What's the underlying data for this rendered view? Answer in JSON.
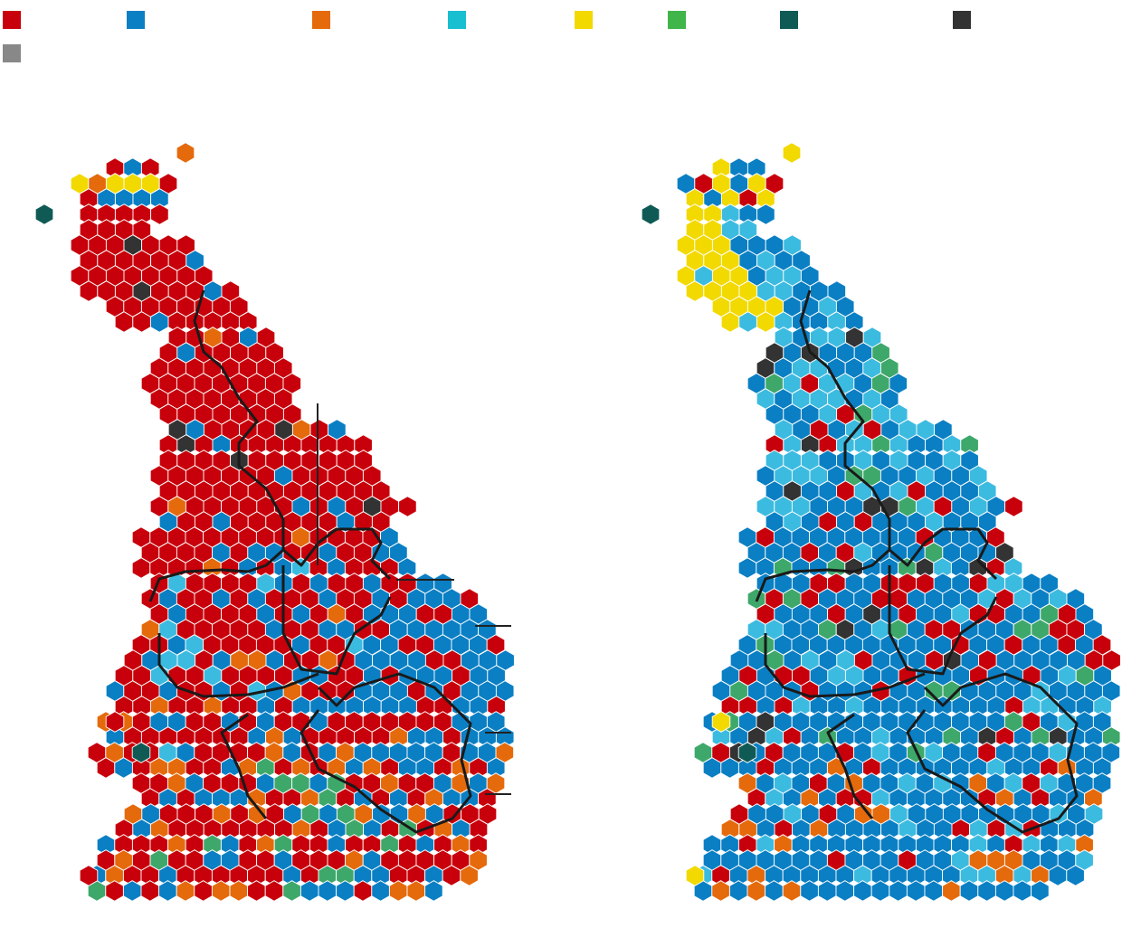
{
  "legend": [
    {
      "key": "lab",
      "label": "",
      "color": "#c8000b"
    },
    {
      "key": "con",
      "label": "",
      "color": "#0a7fc4"
    },
    {
      "key": "ld",
      "label": "",
      "color": "#e56a0c"
    },
    {
      "key": "ref",
      "label": "",
      "color": "#17bfd0"
    },
    {
      "key": "snp",
      "label": "",
      "color": "#f2d900"
    },
    {
      "key": "grn",
      "label": "",
      "color": "#3fb54a"
    },
    {
      "key": "pc",
      "label": "",
      "color": "#0f5a55"
    },
    {
      "key": "ind",
      "label": "",
      "color": "#333333"
    },
    {
      "key": "oth",
      "label": "",
      "color": "#888888"
    }
  ],
  "map_colors": {
    "lab": "#c8000b",
    "con": "#0a7fc4",
    "ld": "#e56a0c",
    "snp": "#f2d900",
    "pc": "#0f5a55",
    "ind": "#333333",
    "oth": "#888888",
    "ref_fill": "#3cbbe0",
    "grn_fill": "#3ea86a",
    "border": "#1a1a1a",
    "leader": "#222222"
  },
  "maps": [
    {
      "name": "left-hex-map",
      "dominant": "lab"
    },
    {
      "name": "right-hex-map",
      "dominant": "con"
    }
  ]
}
